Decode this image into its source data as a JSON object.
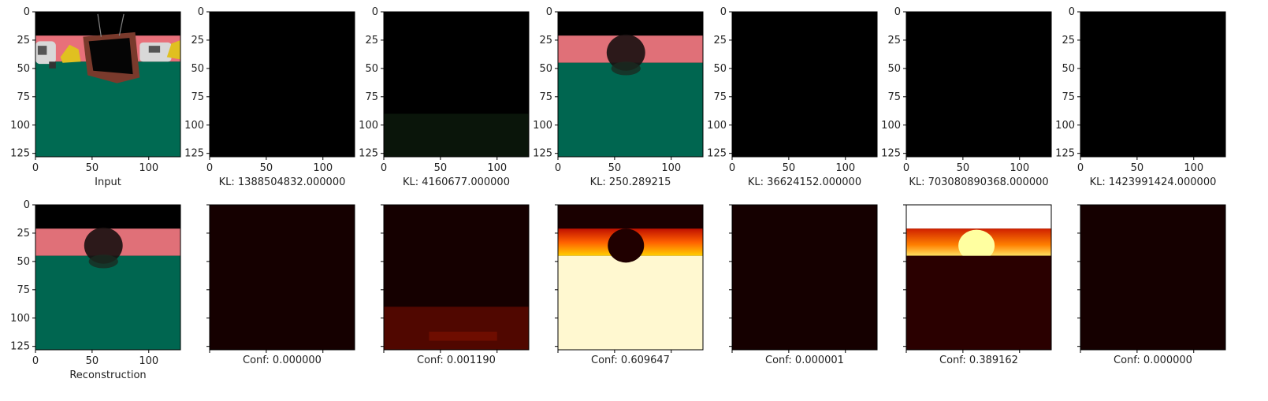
{
  "chart_data": {
    "type": "image_grid",
    "rows": 2,
    "columns": 7,
    "image_size": [
      128,
      128
    ],
    "axis_ticks": [
      0,
      50,
      100
    ],
    "y_axis_ticks": [
      0,
      25,
      50,
      75,
      100,
      125
    ],
    "top_row": {
      "captions": [
        "Input",
        "KL: 1388504832.000000",
        "KL: 4160677.000000",
        "KL: 250.289215",
        "KL: 36624152.000000",
        "KL: 703080890368.000000",
        "KL: 1423991424.000000"
      ],
      "kl_values": [
        1388504832.0,
        4160677.0,
        250.289215,
        36624152.0,
        703080890368.0,
        1423991424.0
      ],
      "panel_kinds": [
        "scene",
        "black",
        "black-faint",
        "recon",
        "black",
        "black",
        "black"
      ]
    },
    "bottom_row": {
      "captions": [
        "Reconstruction",
        "Conf: 0.000000",
        "Conf: 0.001190",
        "Conf: 0.609647",
        "Conf: 0.000001",
        "Conf: 0.389162",
        "Conf: 0.000000"
      ],
      "conf_values": [
        0.0,
        0.00119,
        0.609647,
        1e-06,
        0.389162,
        0.0
      ],
      "panel_kinds": [
        "recon",
        "heat-dark",
        "heat-lowband",
        "heat-bright",
        "heat-dark",
        "heat-mid",
        "heat-dark"
      ]
    },
    "colors": {
      "sky": "#000000",
      "wall": "#e8707a",
      "floor": "#006a52",
      "tv": "#7a3a2c",
      "car": "#d8d8d8",
      "yellow": "#e0c020",
      "heat_dark": "#150000"
    }
  }
}
